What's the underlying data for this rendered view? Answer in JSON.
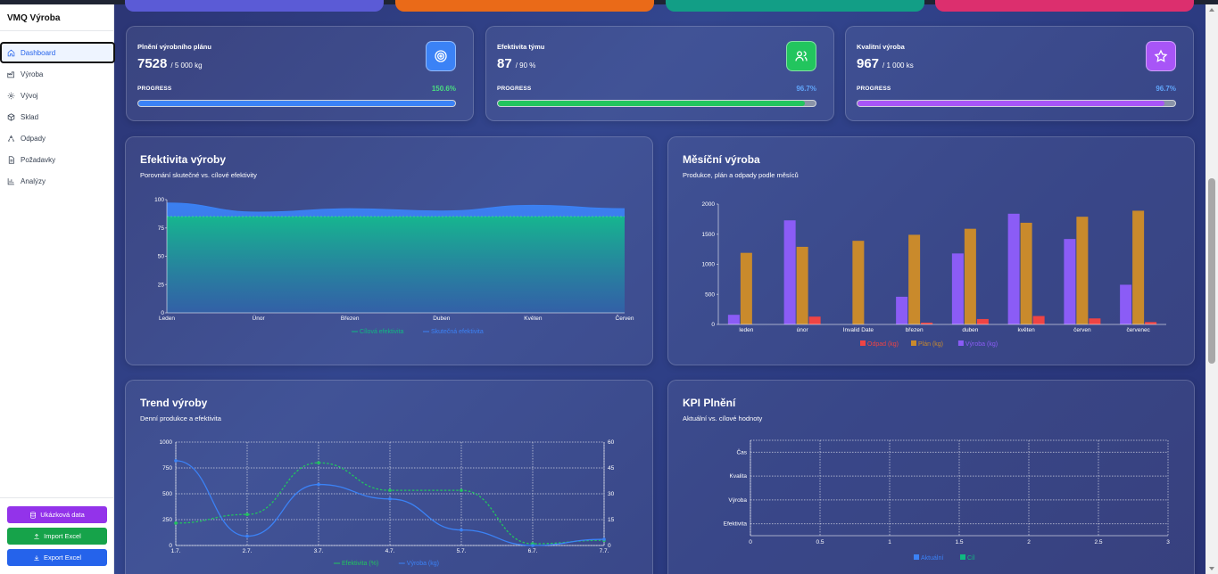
{
  "app": {
    "title": "VMQ Výroba"
  },
  "sidebar": {
    "items": [
      {
        "label": "Dashboard",
        "icon": "home-icon",
        "active": true
      },
      {
        "label": "Výroba",
        "icon": "factory-icon"
      },
      {
        "label": "Vývoj",
        "icon": "gear-icon"
      },
      {
        "label": "Sklad",
        "icon": "package-icon"
      },
      {
        "label": "Odpady",
        "icon": "recycle-icon"
      },
      {
        "label": "Požadavky",
        "icon": "document-icon"
      },
      {
        "label": "Analýzy",
        "icon": "bar-chart-icon"
      }
    ],
    "buttons": [
      {
        "label": "Ukázková data",
        "icon": "database-icon",
        "color": "#9333ea"
      },
      {
        "label": "Import Excel",
        "icon": "upload-icon",
        "color": "#16a34a"
      },
      {
        "label": "Export Excel",
        "icon": "download-icon",
        "color": "#2563eb"
      }
    ]
  },
  "stats": [
    {
      "title": "Plnění výrobního plánu",
      "value": "7528",
      "target": "/ 5 000 kg",
      "progress_label": "PROGRESS",
      "percent": "150.6%",
      "progress_fraction": 1.0,
      "percent_color": "#4ade80",
      "bar_color": "#3b82f6",
      "icon": "target-icon",
      "icon_color": "#3b82f6"
    },
    {
      "title": "Efektivita týmu",
      "value": "87",
      "target": "/ 90 %",
      "progress_label": "PROGRESS",
      "percent": "96.7%",
      "progress_fraction": 0.967,
      "percent_color": "#60a5fa",
      "bar_color": "#22c55e",
      "icon": "users-icon",
      "icon_color": "#22c55e"
    },
    {
      "title": "Kvalitní výroba",
      "value": "967",
      "target": "/ 1 000 ks",
      "progress_label": "PROGRESS",
      "percent": "96.7%",
      "progress_fraction": 0.967,
      "percent_color": "#60a5fa",
      "bar_color": "#a855f7",
      "icon": "star-icon",
      "icon_color": "#a855f7"
    }
  ],
  "peek_colors": [
    "#5b5bd6",
    "#ea6a18",
    "#129e86",
    "#dc2f6e"
  ],
  "chart_data": [
    {
      "id": "efektivita",
      "type": "area",
      "title": "Efektivita výroby",
      "subtitle": "Porovnání skutečné vs. cílové efektivity",
      "categories": [
        "Leden",
        "Únor",
        "Březen",
        "Duben",
        "Květen",
        "Červen"
      ],
      "ylim": [
        0,
        100
      ],
      "yticks": [
        0,
        25,
        50,
        75,
        100
      ],
      "series": [
        {
          "name": "Cílová efektivita",
          "values": [
            85,
            85,
            85,
            85,
            85,
            85
          ],
          "color": "#10b981"
        },
        {
          "name": "Skutečná efektivita",
          "values": [
            97,
            89,
            92,
            90,
            95,
            92
          ],
          "color": "#3b82f6"
        }
      ],
      "grid": false,
      "legend": "bottom"
    },
    {
      "id": "mesicni",
      "type": "bar",
      "title": "Měsíční výroba",
      "subtitle": "Produkce, plán a odpady podle měsíců",
      "categories": [
        "leden",
        "únor",
        "Invalid Date",
        "březen",
        "duben",
        "květen",
        "červen",
        "červenec"
      ],
      "ylim": [
        0,
        2000
      ],
      "yticks": [
        0,
        500,
        1000,
        1500,
        2000
      ],
      "series": [
        {
          "name": "Výroba (kg)",
          "values": [
            160,
            1730,
            0,
            460,
            1180,
            1840,
            1420,
            660
          ],
          "color": "#8b5cf6"
        },
        {
          "name": "Plán (kg)",
          "values": [
            1190,
            1290,
            1390,
            1490,
            1590,
            1690,
            1790,
            1890
          ],
          "color": "#c98a2c"
        },
        {
          "name": "Odpad (kg)",
          "values": [
            0,
            130,
            0,
            30,
            90,
            140,
            100,
            40
          ],
          "color": "#ef4444"
        }
      ],
      "legend_order": [
        "Odpad (kg)",
        "Plán (kg)",
        "Výroba (kg)"
      ],
      "legend": "bottom"
    },
    {
      "id": "trend",
      "type": "line",
      "title": "Trend výroby",
      "subtitle": "Denní produkce a efektivita",
      "categories": [
        "1.7.",
        "2.7.",
        "3.7.",
        "4.7.",
        "5.7.",
        "6.7.",
        "7.7."
      ],
      "ylim_left": [
        0,
        1000
      ],
      "yticks_left": [
        0,
        250,
        500,
        750,
        1000
      ],
      "ylim_right": [
        0,
        60
      ],
      "yticks_right": [
        0,
        15,
        30,
        45,
        60
      ],
      "series": [
        {
          "name": "Efektivita (%)",
          "values": [
            13,
            18,
            48,
            32,
            32,
            1,
            3
          ],
          "axis": "right",
          "color": "#22c55e",
          "dashed": true
        },
        {
          "name": "Výroba (kg)",
          "values": [
            820,
            90,
            590,
            450,
            150,
            0,
            60
          ],
          "axis": "left",
          "color": "#3b82f6",
          "dashed": false
        }
      ],
      "grid": true,
      "legend": "bottom"
    },
    {
      "id": "kpi",
      "type": "bar",
      "orientation": "horizontal",
      "title": "KPI Plnění",
      "subtitle": "Aktuální vs. cílové hodnoty",
      "categories": [
        "Čas",
        "Kvalita",
        "Výroba",
        "Efektivita"
      ],
      "xlim": [
        0,
        3
      ],
      "xticks": [
        "0",
        "0.5",
        "1",
        "1.5",
        "2",
        "2.5",
        "3"
      ],
      "series": [
        {
          "name": "Aktuální",
          "values": [
            0,
            0,
            0,
            0
          ],
          "color": "#3b82f6"
        },
        {
          "name": "Cíl",
          "values": [
            0,
            0,
            0,
            0
          ],
          "color": "#10b981"
        }
      ],
      "grid": true,
      "legend": "bottom"
    }
  ]
}
